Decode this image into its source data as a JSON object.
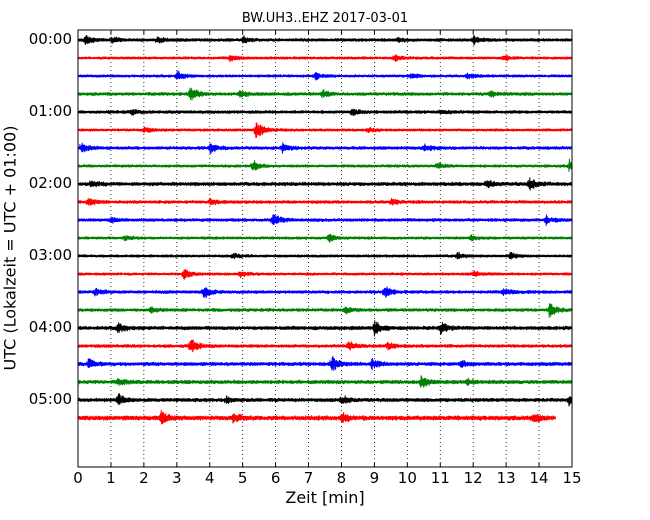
{
  "chart_data": {
    "type": "line",
    "title": "BW.UH3..EHZ 2017-03-01",
    "xlabel": "Zeit  [min]",
    "ylabel": "UTC (Lokalzeit = UTC + 01:00)",
    "xlim": [
      0,
      15
    ],
    "xticks": [
      "0",
      "1",
      "2",
      "3",
      "4",
      "5",
      "6",
      "7",
      "8",
      "9",
      "10",
      "11",
      "12",
      "13",
      "14",
      "15"
    ],
    "yticks": [
      {
        "label": "00:00",
        "row": 0
      },
      {
        "label": "01:00",
        "row": 4
      },
      {
        "label": "02:00",
        "row": 8
      },
      {
        "label": "03:00",
        "row": 12
      },
      {
        "label": "04:00",
        "row": 16
      },
      {
        "label": "05:00",
        "row": 20
      }
    ],
    "vertical_grid": "dotted",
    "trace_colors": [
      "#000000",
      "#ff0000",
      "#0000ff",
      "#008000"
    ],
    "rows": [
      {
        "start": "00:00",
        "color": "#000000",
        "end_min": 15,
        "amplitude": 0.3,
        "events": [
          [
            0.2,
            1.0
          ],
          [
            1.0,
            0.7
          ],
          [
            2.4,
            0.6
          ],
          [
            5.0,
            0.6
          ],
          [
            9.7,
            0.5
          ],
          [
            12.0,
            0.9
          ]
        ]
      },
      {
        "start": "00:15",
        "color": "#ff0000",
        "end_min": 15,
        "amplitude": 0.25,
        "events": [
          [
            4.6,
            0.8
          ],
          [
            9.6,
            0.7
          ],
          [
            12.9,
            0.6
          ]
        ]
      },
      {
        "start": "00:30",
        "color": "#0000ff",
        "end_min": 15,
        "amplitude": 0.25,
        "events": [
          [
            3.0,
            1.0
          ],
          [
            7.2,
            0.8
          ],
          [
            10.1,
            0.6
          ],
          [
            11.8,
            0.6
          ]
        ]
      },
      {
        "start": "00:45",
        "color": "#008000",
        "end_min": 15,
        "amplitude": 0.3,
        "events": [
          [
            3.4,
            1.6
          ],
          [
            4.9,
            0.8
          ],
          [
            7.4,
            0.8
          ],
          [
            12.5,
            0.6
          ]
        ]
      },
      {
        "start": "01:00",
        "color": "#000000",
        "end_min": 15,
        "amplitude": 0.3,
        "events": [
          [
            1.6,
            0.6
          ],
          [
            8.3,
            0.7
          ],
          [
            11.0,
            0.6
          ]
        ]
      },
      {
        "start": "01:15",
        "color": "#ff0000",
        "end_min": 15,
        "amplitude": 0.25,
        "events": [
          [
            2.0,
            0.6
          ],
          [
            5.4,
            2.2
          ],
          [
            8.8,
            0.6
          ]
        ]
      },
      {
        "start": "01:30",
        "color": "#0000ff",
        "end_min": 15,
        "amplitude": 0.3,
        "events": [
          [
            0.1,
            1.2
          ],
          [
            4.0,
            1.0
          ],
          [
            6.2,
            0.8
          ],
          [
            10.5,
            0.7
          ]
        ]
      },
      {
        "start": "01:45",
        "color": "#008000",
        "end_min": 15,
        "amplitude": 0.25,
        "events": [
          [
            5.3,
            1.2
          ],
          [
            10.9,
            0.6
          ],
          [
            14.9,
            1.2
          ]
        ]
      },
      {
        "start": "02:00",
        "color": "#000000",
        "end_min": 15,
        "amplitude": 0.35,
        "events": [
          [
            0.4,
            0.7
          ],
          [
            12.4,
            0.9
          ],
          [
            13.7,
            1.2
          ]
        ]
      },
      {
        "start": "02:15",
        "color": "#ff0000",
        "end_min": 15,
        "amplitude": 0.3,
        "events": [
          [
            0.3,
            0.9
          ],
          [
            4.0,
            0.6
          ],
          [
            9.5,
            0.6
          ]
        ]
      },
      {
        "start": "02:30",
        "color": "#0000ff",
        "end_min": 15,
        "amplitude": 0.3,
        "events": [
          [
            1.0,
            0.6
          ],
          [
            5.9,
            1.5
          ],
          [
            14.2,
            0.8
          ]
        ]
      },
      {
        "start": "02:45",
        "color": "#008000",
        "end_min": 15,
        "amplitude": 0.25,
        "events": [
          [
            1.4,
            0.6
          ],
          [
            7.6,
            0.8
          ],
          [
            11.9,
            0.6
          ]
        ]
      },
      {
        "start": "03:00",
        "color": "#000000",
        "end_min": 15,
        "amplitude": 0.25,
        "events": [
          [
            4.7,
            0.6
          ],
          [
            11.5,
            0.7
          ],
          [
            13.1,
            0.8
          ]
        ]
      },
      {
        "start": "03:15",
        "color": "#ff0000",
        "end_min": 15,
        "amplitude": 0.25,
        "events": [
          [
            3.2,
            1.4
          ],
          [
            4.9,
            0.6
          ],
          [
            12.0,
            0.6
          ]
        ]
      },
      {
        "start": "03:30",
        "color": "#0000ff",
        "end_min": 15,
        "amplitude": 0.3,
        "events": [
          [
            0.5,
            0.8
          ],
          [
            3.8,
            1.2
          ],
          [
            9.3,
            1.1
          ],
          [
            12.9,
            0.7
          ]
        ]
      },
      {
        "start": "03:45",
        "color": "#008000",
        "end_min": 15,
        "amplitude": 0.3,
        "events": [
          [
            2.2,
            0.6
          ],
          [
            8.1,
            0.7
          ],
          [
            14.3,
            1.6
          ]
        ]
      },
      {
        "start": "04:00",
        "color": "#000000",
        "end_min": 15,
        "amplitude": 0.35,
        "events": [
          [
            1.2,
            1.0
          ],
          [
            9.0,
            1.4
          ],
          [
            11.0,
            1.3
          ]
        ]
      },
      {
        "start": "04:15",
        "color": "#ff0000",
        "end_min": 15,
        "amplitude": 0.3,
        "events": [
          [
            3.4,
            1.6
          ],
          [
            8.2,
            1.0
          ],
          [
            9.4,
            0.7
          ]
        ]
      },
      {
        "start": "04:30",
        "color": "#0000ff",
        "end_min": 15,
        "amplitude": 0.35,
        "events": [
          [
            0.3,
            0.9
          ],
          [
            7.7,
            1.6
          ],
          [
            8.9,
            1.0
          ],
          [
            11.6,
            0.7
          ]
        ]
      },
      {
        "start": "04:45",
        "color": "#008000",
        "end_min": 15,
        "amplitude": 0.35,
        "events": [
          [
            1.2,
            0.7
          ],
          [
            10.4,
            1.4
          ],
          [
            11.8,
            0.6
          ]
        ]
      },
      {
        "start": "05:00",
        "color": "#000000",
        "end_min": 15,
        "amplitude": 0.35,
        "events": [
          [
            1.2,
            1.2
          ],
          [
            4.5,
            0.6
          ],
          [
            8.0,
            0.8
          ],
          [
            14.9,
            1.0
          ]
        ]
      },
      {
        "start": "05:15",
        "color": "#ff0000",
        "end_min": 14.5,
        "amplitude": 0.45,
        "events": [
          [
            2.5,
            1.4
          ],
          [
            4.7,
            1.0
          ],
          [
            8.0,
            0.9
          ],
          [
            13.8,
            1.2
          ]
        ]
      }
    ]
  }
}
